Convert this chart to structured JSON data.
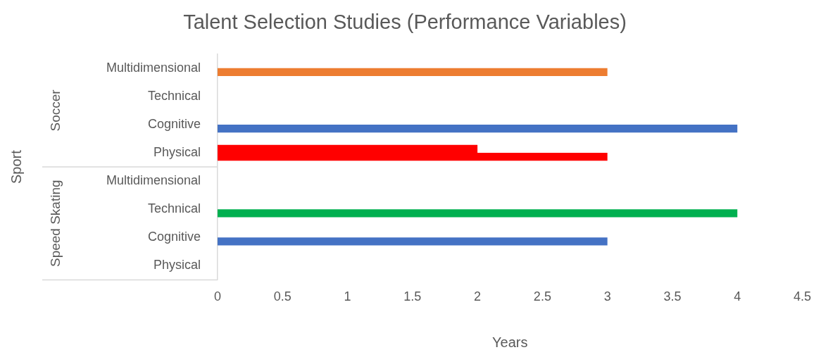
{
  "chart_data": {
    "type": "bar",
    "orientation": "horizontal",
    "title": "Talent Selection Studies (Performance Variables)",
    "xlabel": "Years",
    "categories": [
      "Multidimensional",
      "Technical",
      "Cognitive",
      "Physical",
      "Multidimensional",
      "Technical",
      "Cognitive",
      "Physical"
    ],
    "series": [
      {
        "color": "#ff0000",
        "values": [
          null,
          null,
          null,
          2,
          null,
          null,
          null,
          null
        ]
      },
      {
        "colors": [
          "#ed7d31",
          null,
          "#4472c4",
          "#ff0000",
          null,
          "#00b050",
          "#4472c4",
          null
        ],
        "values": [
          3,
          null,
          4,
          3,
          null,
          4,
          3,
          null
        ]
      }
    ],
    "annotations": [
      "Sport",
      "Soccer",
      "Speed Skating"
    ],
    "xlim": [
      0,
      4.5
    ],
    "xticks": [
      0,
      0.5,
      1,
      1.5,
      2,
      2.5,
      3,
      3.5,
      4,
      4.5
    ],
    "grid": false,
    "legend": false
  }
}
